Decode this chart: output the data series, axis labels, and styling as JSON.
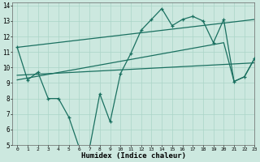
{
  "xlabel": "Humidex (Indice chaleur)",
  "xlim": [
    -0.5,
    23
  ],
  "ylim": [
    5,
    14.2
  ],
  "xticks": [
    0,
    1,
    2,
    3,
    4,
    5,
    6,
    7,
    8,
    9,
    10,
    11,
    12,
    13,
    14,
    15,
    16,
    17,
    18,
    19,
    20,
    21,
    22,
    23
  ],
  "yticks": [
    5,
    6,
    7,
    8,
    9,
    10,
    11,
    12,
    13,
    14
  ],
  "bg_color": "#cce8df",
  "grid_color": "#aad4c8",
  "line_color": "#1a7060",
  "zigzag": {
    "x": [
      0,
      1,
      2,
      3,
      4,
      5,
      6,
      7,
      8,
      9,
      10,
      11,
      12,
      13,
      14,
      15,
      16,
      17,
      18,
      19,
      20,
      21,
      22,
      23
    ],
    "y": [
      11.3,
      9.2,
      9.7,
      8.0,
      8.0,
      6.8,
      4.85,
      4.78,
      8.3,
      6.5,
      9.6,
      10.9,
      12.4,
      13.1,
      13.8,
      12.7,
      13.1,
      13.3,
      13.0,
      11.6,
      13.1,
      9.1,
      9.4,
      10.6
    ]
  },
  "smooth_lines": [
    {
      "x": [
        0,
        23
      ],
      "y": [
        11.3,
        13.1
      ]
    },
    {
      "x": [
        0,
        20,
        21,
        22,
        23
      ],
      "y": [
        9.2,
        11.6,
        9.1,
        9.4,
        10.6
      ]
    },
    {
      "x": [
        0,
        23
      ],
      "y": [
        9.5,
        10.3
      ]
    }
  ]
}
